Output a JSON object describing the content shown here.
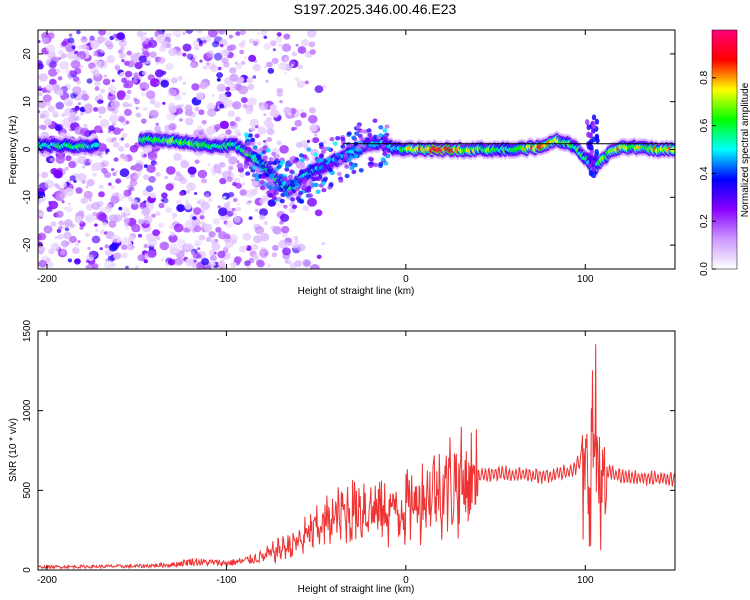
{
  "title": "S197.2025.346.00.46.E23",
  "chart_data": [
    {
      "type": "heatmap",
      "name": "spectrogram",
      "xlabel": "Height of straight line (km)",
      "ylabel": "Frequency (Hz)",
      "xlim": [
        -205,
        150
      ],
      "ylim": [
        -25,
        25
      ],
      "xticks": [
        -200,
        -100,
        0,
        100
      ],
      "yticks": [
        20,
        10,
        0,
        -10,
        -20
      ],
      "colorbar": {
        "label": "Normalized spectral amplitude",
        "range": [
          0,
          1
        ],
        "ticks": [
          "0.0",
          "0.2",
          "0.4",
          "0.6",
          "0.8"
        ],
        "colors": [
          "#ffffff",
          "#cc99ff",
          "#8800ff",
          "#0000ff",
          "#00ffff",
          "#00ff00",
          "#ffff00",
          "#ff0000",
          "#ff0077"
        ]
      },
      "ridge": [
        [
          -198,
          0.8,
          0.55
        ],
        [
          -190,
          0.8,
          0.6
        ],
        [
          -180,
          0.6,
          0.6
        ],
        [
          -175,
          0.6,
          0.5
        ],
        [
          -145,
          2.0,
          0.6
        ],
        [
          -135,
          2.0,
          0.6
        ],
        [
          -125,
          1.5,
          0.65
        ],
        [
          -115,
          1.0,
          0.6
        ],
        [
          -105,
          0.5,
          0.6
        ],
        [
          -95,
          1.0,
          0.55
        ],
        [
          -85,
          -1.5,
          0.6
        ],
        [
          -75,
          -5.0,
          0.6
        ],
        [
          -65,
          -8.5,
          0.6
        ],
        [
          -55,
          -5.0,
          0.5
        ],
        [
          -45,
          -3.5,
          0.45
        ],
        [
          -35,
          -1.5,
          0.45
        ],
        [
          -25,
          0.5,
          0.5
        ],
        [
          -15,
          1.5,
          0.45
        ],
        [
          -5,
          0.0,
          0.5
        ],
        [
          5,
          0.0,
          0.75
        ],
        [
          20,
          0.0,
          0.9
        ],
        [
          40,
          0.0,
          0.65
        ],
        [
          60,
          0.0,
          0.6
        ],
        [
          75,
          0.5,
          0.85
        ],
        [
          85,
          2.0,
          0.65
        ],
        [
          95,
          0.5,
          0.6
        ],
        [
          105,
          -4.0,
          0.5
        ],
        [
          115,
          0.0,
          0.75
        ],
        [
          125,
          0.5,
          0.7
        ],
        [
          140,
          0.0,
          0.75
        ],
        [
          150,
          0.0,
          0.75
        ]
      ]
    },
    {
      "type": "line",
      "name": "snr",
      "xlabel": "Height of straight line (km)",
      "ylabel": "SNR (10 * v/v)",
      "xlim": [
        -205,
        150
      ],
      "ylim": [
        0,
        1500
      ],
      "xticks": [
        -200,
        -100,
        0,
        100
      ],
      "yticks": [
        0,
        500,
        1000,
        1500
      ],
      "color": "#ee3333",
      "envelope": [
        [
          -205,
          20
        ],
        [
          -150,
          25
        ],
        [
          -130,
          35
        ],
        [
          -120,
          55
        ],
        [
          -100,
          45
        ],
        [
          -90,
          60
        ],
        [
          -80,
          90
        ],
        [
          -70,
          150
        ],
        [
          -60,
          200
        ],
        [
          -45,
          340
        ],
        [
          -35,
          400
        ],
        [
          -25,
          450
        ],
        [
          -10,
          420
        ],
        [
          0,
          460
        ],
        [
          10,
          530
        ],
        [
          20,
          600
        ],
        [
          30,
          630
        ],
        [
          50,
          650
        ],
        [
          70,
          640
        ],
        [
          80,
          640
        ],
        [
          90,
          660
        ],
        [
          95,
          700
        ],
        [
          100,
          780
        ],
        [
          103,
          1000
        ],
        [
          105,
          1350
        ],
        [
          107,
          1000
        ],
        [
          110,
          680
        ],
        [
          120,
          630
        ],
        [
          135,
          620
        ],
        [
          150,
          610
        ]
      ]
    }
  ]
}
